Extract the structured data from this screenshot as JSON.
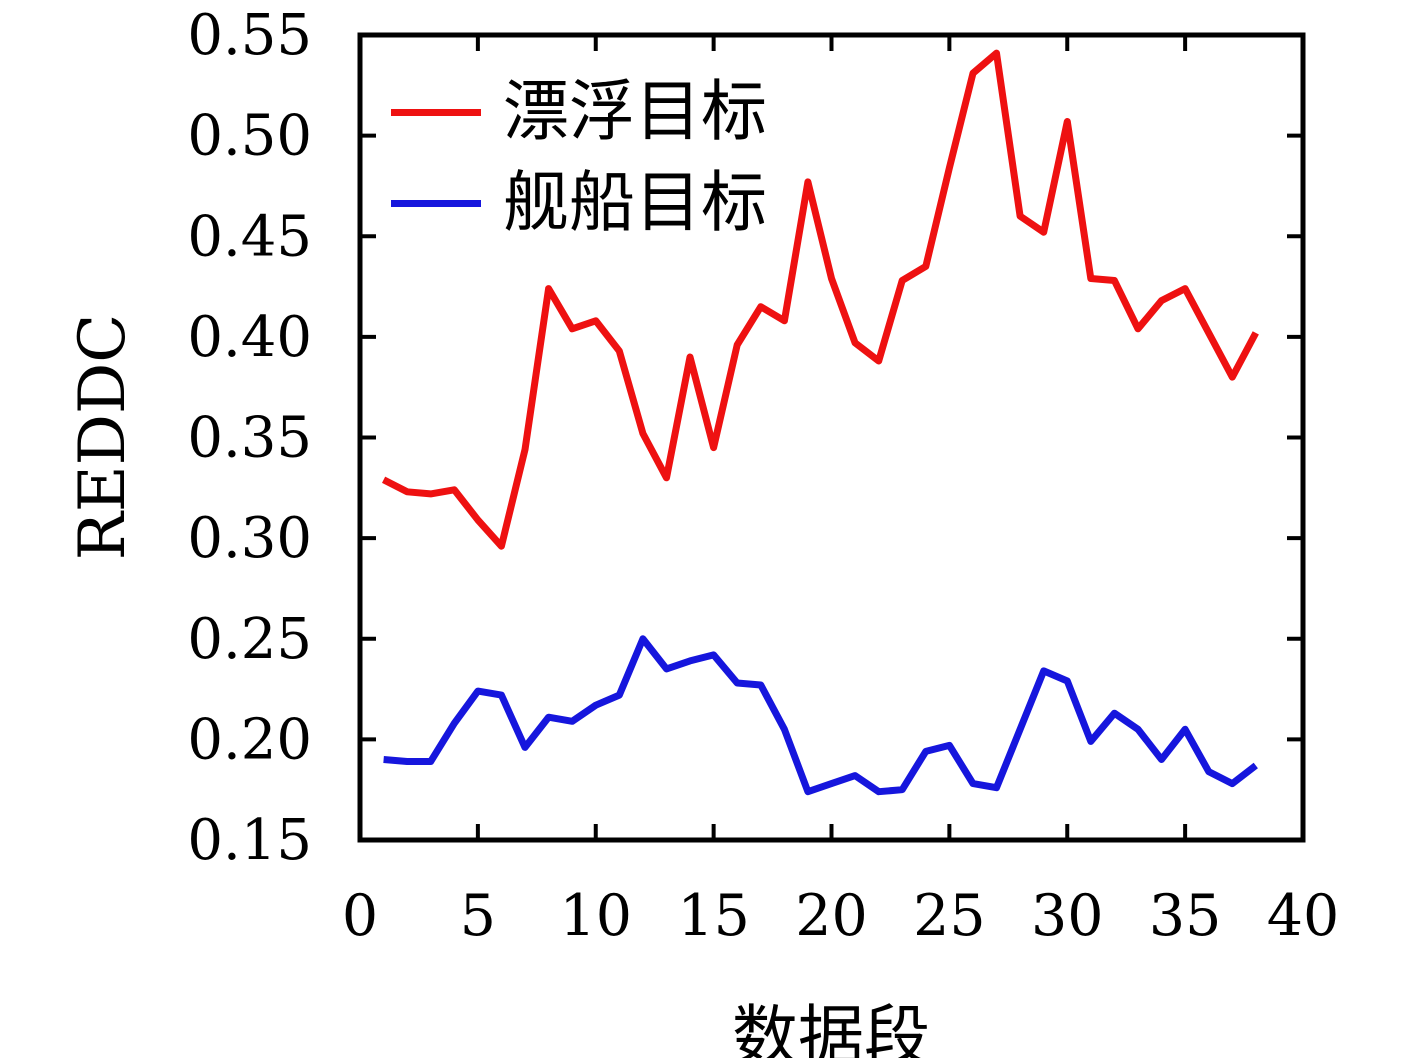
{
  "chart_data": {
    "type": "line",
    "title": "",
    "xlabel": "数据段",
    "ylabel": "REDDC",
    "xlim": [
      0,
      40
    ],
    "ylim": [
      0.15,
      0.55
    ],
    "x_ticks": [
      0,
      5,
      10,
      15,
      20,
      25,
      30,
      35,
      40
    ],
    "y_ticks": [
      0.15,
      0.2,
      0.25,
      0.3,
      0.35,
      0.4,
      0.45,
      0.5,
      0.55
    ],
    "grid": false,
    "legend_position": "top-left-inside",
    "x": [
      1,
      2,
      3,
      4,
      5,
      6,
      7,
      8,
      9,
      10,
      11,
      12,
      13,
      14,
      15,
      16,
      17,
      18,
      19,
      20,
      21,
      22,
      23,
      24,
      25,
      26,
      27,
      28,
      29,
      30,
      31,
      32,
      33,
      34,
      35,
      36,
      37,
      38
    ],
    "series": [
      {
        "name": "漂浮目标",
        "color": "#ee1111",
        "values": [
          0.329,
          0.323,
          0.322,
          0.324,
          0.309,
          0.296,
          0.344,
          0.424,
          0.404,
          0.408,
          0.393,
          0.352,
          0.33,
          0.39,
          0.345,
          0.396,
          0.415,
          0.408,
          0.477,
          0.429,
          0.397,
          0.388,
          0.428,
          0.435,
          0.484,
          0.531,
          0.541,
          0.46,
          0.452,
          0.507,
          0.429,
          0.428,
          0.404,
          0.418,
          0.424,
          0.402,
          0.38,
          0.402
        ]
      },
      {
        "name": "舰船目标",
        "color": "#1616dd",
        "values": [
          0.19,
          0.189,
          0.189,
          0.208,
          0.224,
          0.222,
          0.196,
          0.211,
          0.209,
          0.217,
          0.222,
          0.25,
          0.235,
          0.239,
          0.242,
          0.228,
          0.227,
          0.205,
          0.174,
          0.178,
          0.182,
          0.174,
          0.175,
          0.194,
          0.197,
          0.178,
          0.176,
          0.205,
          0.234,
          0.229,
          0.199,
          0.213,
          0.205,
          0.19,
          0.205,
          0.184,
          0.178,
          0.187
        ]
      }
    ]
  },
  "colors": {
    "axis": "#000000",
    "background": "#ffffff",
    "text": "#000000"
  }
}
